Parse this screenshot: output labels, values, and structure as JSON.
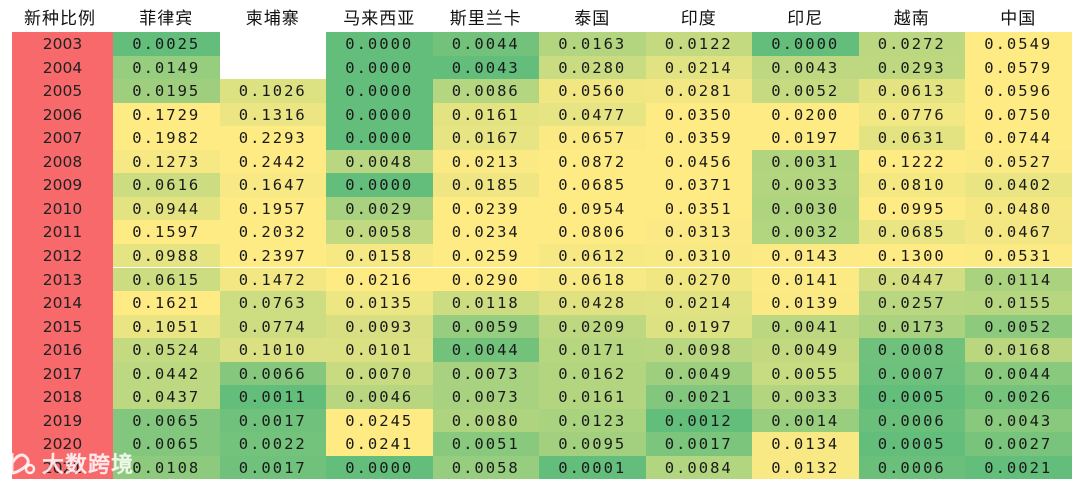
{
  "chart_data": {
    "type": "heatmap",
    "corner_label": "新种比例",
    "columns": [
      "菲律宾",
      "柬埔寨",
      "马来西亚",
      "斯里兰卡",
      "泰国",
      "印度",
      "印尼",
      "越南",
      "中国"
    ],
    "rows": [
      "2003",
      "2004",
      "2005",
      "2006",
      "2007",
      "2008",
      "2009",
      "2010",
      "2011",
      "2012",
      "2013",
      "2014",
      "2015",
      "2016",
      "2017",
      "2018",
      "2019",
      "2020",
      "2021"
    ],
    "values": [
      [
        "0.0025",
        "",
        "0.0000",
        "0.0044",
        "0.0163",
        "0.0122",
        "0.0000",
        "0.0272",
        "0.0549"
      ],
      [
        "0.0149",
        "",
        "0.0000",
        "0.0043",
        "0.0280",
        "0.0214",
        "0.0043",
        "0.0293",
        "0.0579"
      ],
      [
        "0.0195",
        "0.1026",
        "0.0000",
        "0.0086",
        "0.0560",
        "0.0281",
        "0.0052",
        "0.0613",
        "0.0596"
      ],
      [
        "0.1729",
        "0.1316",
        "0.0000",
        "0.0161",
        "0.0477",
        "0.0350",
        "0.0200",
        "0.0776",
        "0.0750"
      ],
      [
        "0.1982",
        "0.2293",
        "0.0000",
        "0.0167",
        "0.0657",
        "0.0359",
        "0.0197",
        "0.0631",
        "0.0744"
      ],
      [
        "0.1273",
        "0.2442",
        "0.0048",
        "0.0213",
        "0.0872",
        "0.0456",
        "0.0031",
        "0.1222",
        "0.0527"
      ],
      [
        "0.0616",
        "0.1647",
        "0.0000",
        "0.0185",
        "0.0685",
        "0.0371",
        "0.0033",
        "0.0810",
        "0.0402"
      ],
      [
        "0.0944",
        "0.1957",
        "0.0029",
        "0.0239",
        "0.0954",
        "0.0351",
        "0.0030",
        "0.0995",
        "0.0480"
      ],
      [
        "0.1597",
        "0.2032",
        "0.0058",
        "0.0234",
        "0.0806",
        "0.0313",
        "0.0032",
        "0.0685",
        "0.0467"
      ],
      [
        "0.0988",
        "0.2397",
        "0.0158",
        "0.0259",
        "0.0612",
        "0.0310",
        "0.0143",
        "0.1300",
        "0.0531"
      ],
      [
        "0.0615",
        "0.1472",
        "0.0216",
        "0.0290",
        "0.0618",
        "0.0270",
        "0.0141",
        "0.0447",
        "0.0114"
      ],
      [
        "0.1621",
        "0.0763",
        "0.0135",
        "0.0118",
        "0.0428",
        "0.0214",
        "0.0139",
        "0.0257",
        "0.0155"
      ],
      [
        "0.1051",
        "0.0774",
        "0.0093",
        "0.0059",
        "0.0209",
        "0.0197",
        "0.0041",
        "0.0173",
        "0.0052"
      ],
      [
        "0.0524",
        "0.1010",
        "0.0101",
        "0.0044",
        "0.0171",
        "0.0098",
        "0.0049",
        "0.0008",
        "0.0168"
      ],
      [
        "0.0442",
        "0.0066",
        "0.0070",
        "0.0073",
        "0.0162",
        "0.0049",
        "0.0055",
        "0.0007",
        "0.0044"
      ],
      [
        "0.0437",
        "0.0011",
        "0.0046",
        "0.0073",
        "0.0161",
        "0.0021",
        "0.0033",
        "0.0005",
        "0.0026"
      ],
      [
        "0.0065",
        "0.0017",
        "0.0245",
        "0.0080",
        "0.0123",
        "0.0012",
        "0.0014",
        "0.0006",
        "0.0043"
      ],
      [
        "0.0065",
        "0.0022",
        "0.0241",
        "0.0051",
        "0.0095",
        "0.0017",
        "0.0134",
        "0.0005",
        "0.0027"
      ],
      [
        "0.0108",
        "0.0017",
        "0.0000",
        "0.0058",
        "0.0001",
        "0.0084",
        "0.0132",
        "0.0006",
        "0.0021"
      ]
    ],
    "color_scale": {
      "low": "#63be7b",
      "high": "#ffeb84"
    },
    "year_column_color": "#f8696b",
    "grid": false
  },
  "watermark": {
    "text": "大数跨境",
    "icon": "logo-icon"
  }
}
